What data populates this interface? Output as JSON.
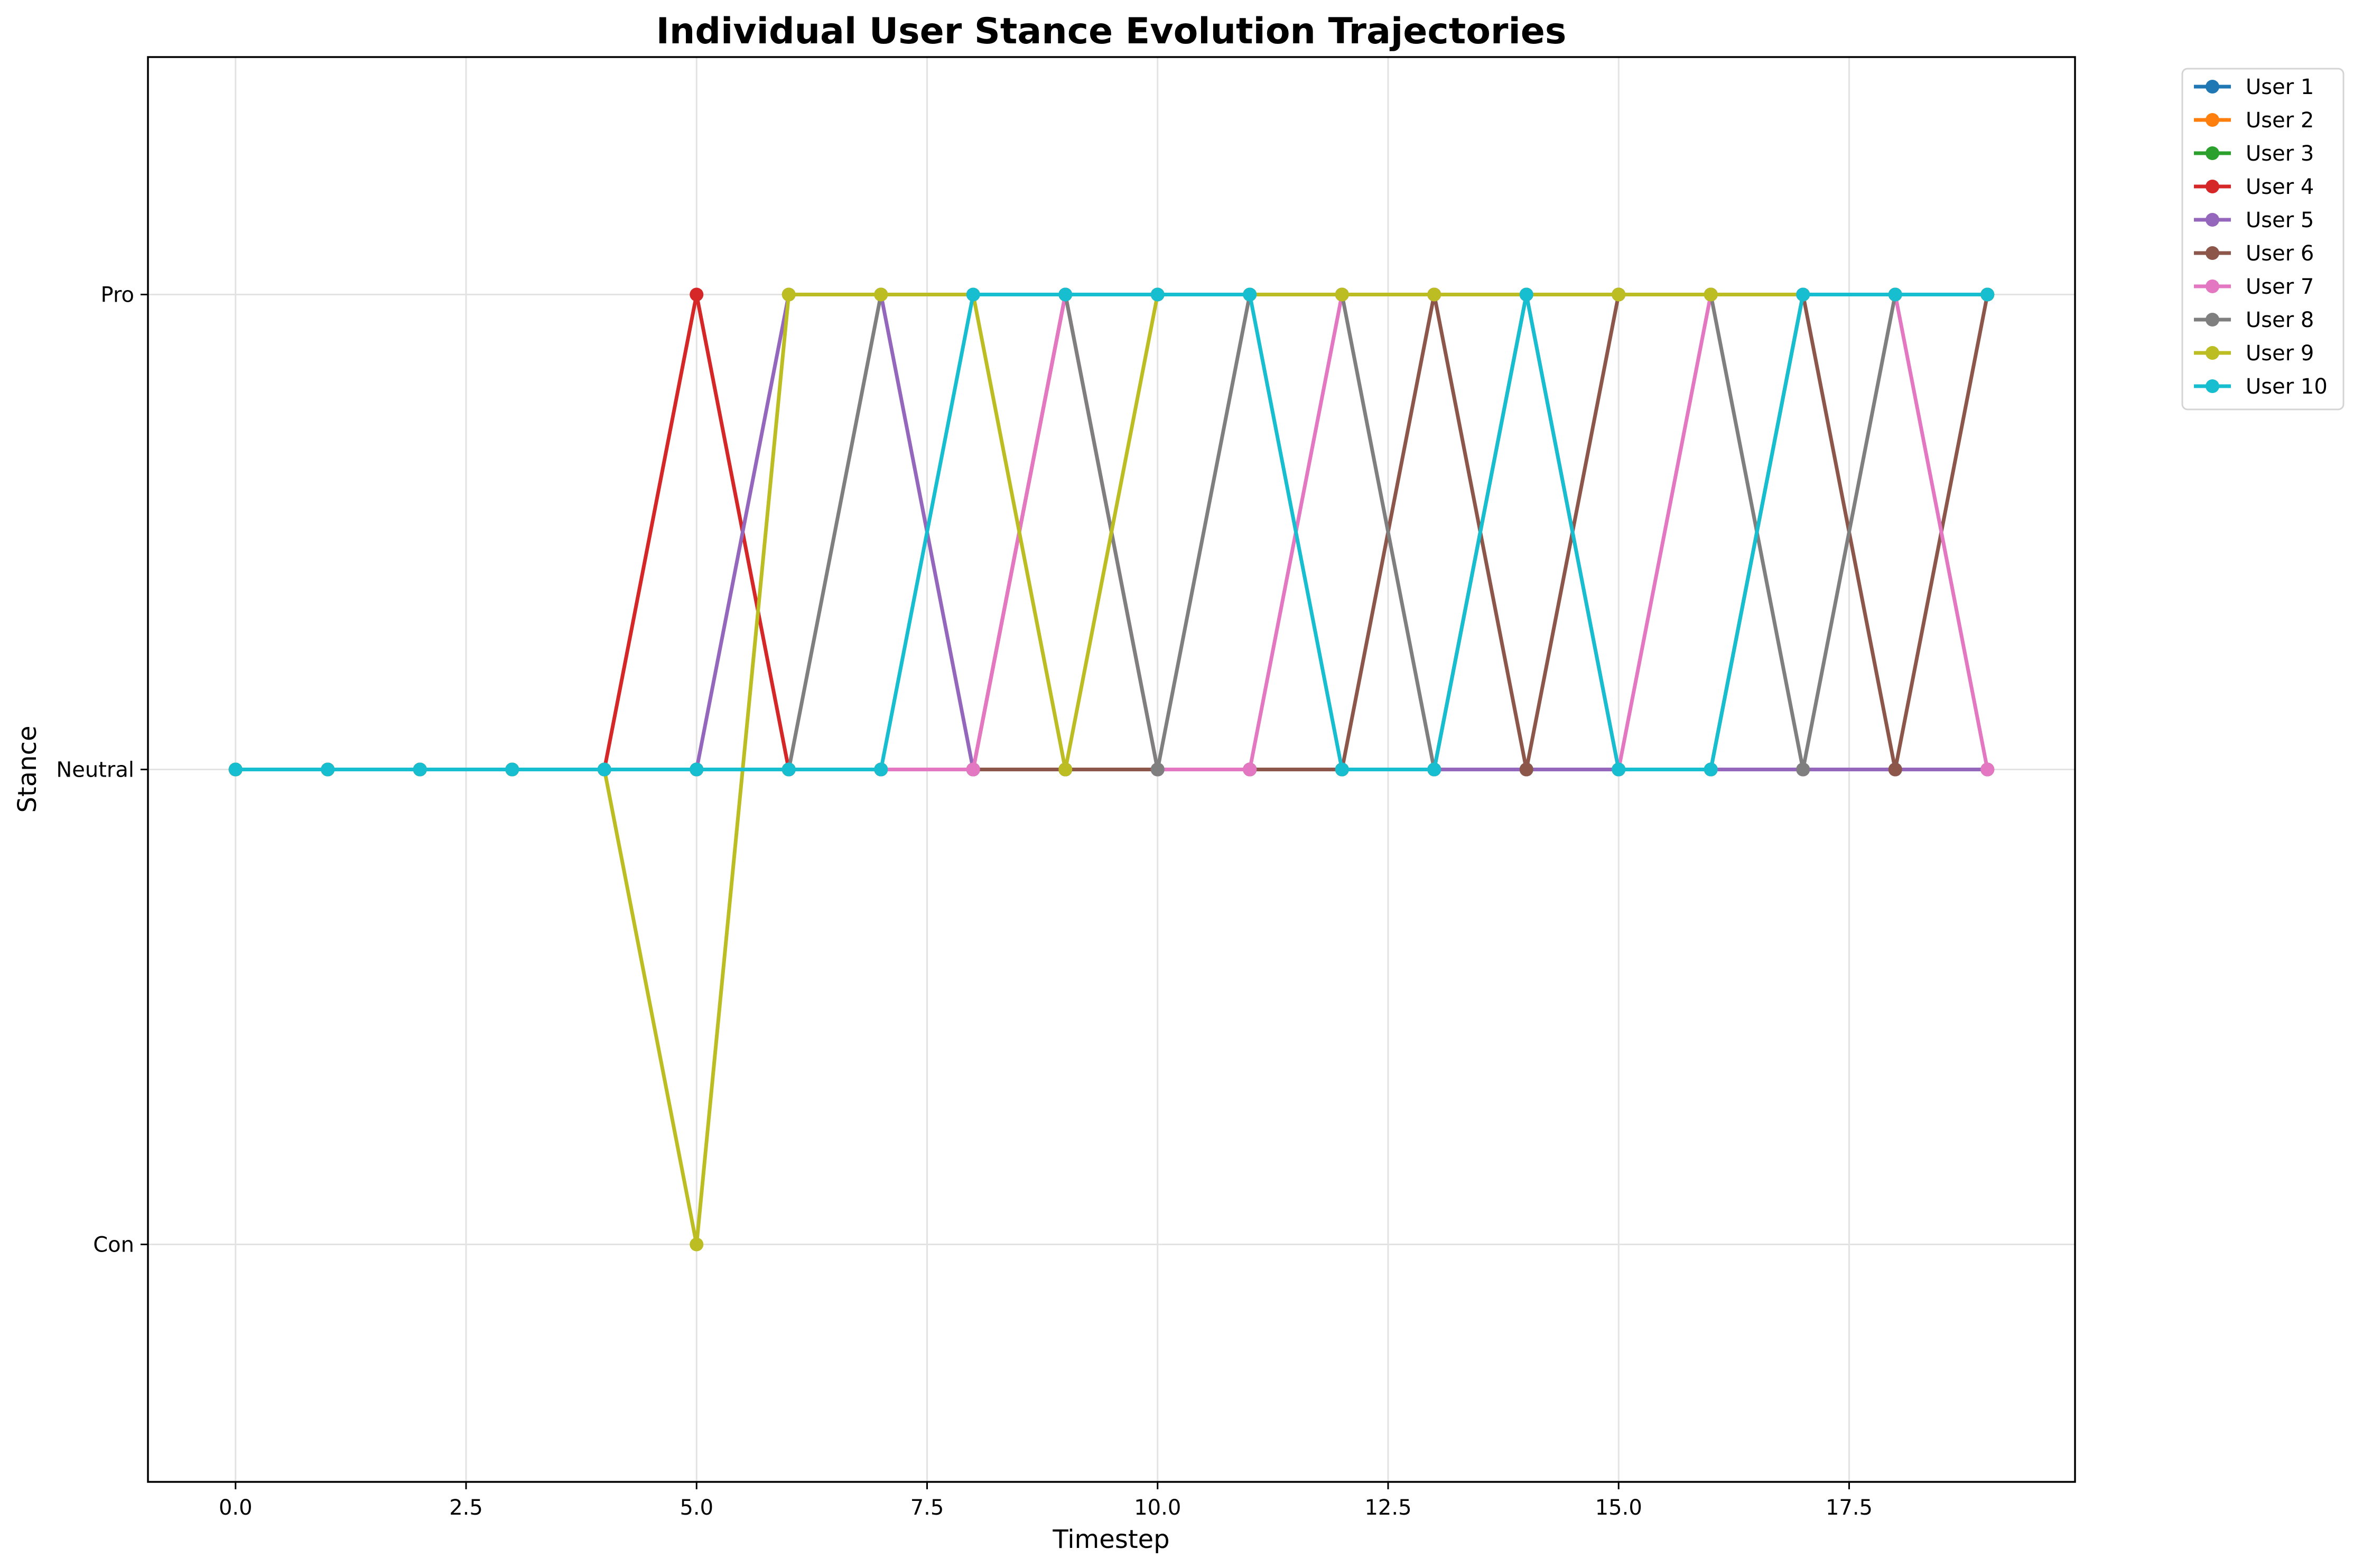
{
  "chart_data": {
    "type": "line",
    "title": "Individual User Stance Evolution Trajectories",
    "xlabel": "Timestep",
    "ylabel": "Stance",
    "xlim": [
      -0.95,
      19.95
    ],
    "ylim": [
      -0.5,
      2.5
    ],
    "xticks": [
      0,
      2.5,
      5,
      7.5,
      10,
      12.5,
      15,
      17.5
    ],
    "xtick_labels": [
      "0.0",
      "2.5",
      "5.0",
      "7.5",
      "10.0",
      "12.5",
      "15.0",
      "17.5"
    ],
    "yticks": [
      0,
      1,
      2
    ],
    "ytick_labels": [
      "Con",
      "Neutral",
      "Pro"
    ],
    "grid": true,
    "legend_position": "outside upper right",
    "x": [
      0,
      1,
      2,
      3,
      4,
      5,
      6,
      7,
      8,
      9,
      10,
      11,
      12,
      13,
      14,
      15,
      16,
      17,
      18,
      19
    ],
    "series": [
      {
        "name": "User 1",
        "color": "#1f77b4",
        "values": [
          1,
          1,
          1,
          1,
          1,
          1,
          1,
          1,
          1,
          1,
          1,
          1,
          1,
          1,
          1,
          1,
          1,
          1,
          1,
          1
        ]
      },
      {
        "name": "User 2",
        "color": "#ff7f0e",
        "values": [
          1,
          1,
          1,
          1,
          1,
          1,
          1,
          1,
          1,
          1,
          1,
          1,
          1,
          1,
          1,
          1,
          1,
          1,
          1,
          1
        ]
      },
      {
        "name": "User 3",
        "color": "#2ca02c",
        "values": [
          1,
          1,
          1,
          1,
          1,
          1,
          1,
          1,
          1,
          1,
          1,
          1,
          1,
          1,
          1,
          1,
          1,
          2,
          2,
          2
        ]
      },
      {
        "name": "User 4",
        "color": "#d62728",
        "values": [
          1,
          1,
          1,
          1,
          1,
          2,
          1,
          1,
          1,
          2,
          2,
          2,
          2,
          2,
          2,
          2,
          2,
          2,
          2,
          2
        ]
      },
      {
        "name": "User 5",
        "color": "#9467bd",
        "values": [
          1,
          1,
          1,
          1,
          1,
          1,
          2,
          2,
          1,
          1,
          1,
          1,
          1,
          1,
          1,
          1,
          1,
          1,
          1,
          1
        ]
      },
      {
        "name": "User 6",
        "color": "#8c564b",
        "values": [
          1,
          1,
          1,
          1,
          1,
          1,
          1,
          1,
          1,
          1,
          1,
          1,
          1,
          2,
          1,
          2,
          2,
          2,
          1,
          2
        ]
      },
      {
        "name": "User 7",
        "color": "#e377c2",
        "values": [
          1,
          1,
          1,
          1,
          1,
          1,
          1,
          1,
          1,
          2,
          1,
          1,
          2,
          2,
          2,
          1,
          2,
          2,
          2,
          1
        ]
      },
      {
        "name": "User 8",
        "color": "#7f7f7f",
        "values": [
          1,
          1,
          1,
          1,
          1,
          1,
          1,
          2,
          2,
          2,
          1,
          2,
          2,
          1,
          2,
          2,
          2,
          1,
          2,
          2
        ]
      },
      {
        "name": "User 9",
        "color": "#bcbd22",
        "values": [
          1,
          1,
          1,
          1,
          1,
          0,
          2,
          2,
          2,
          1,
          2,
          2,
          2,
          2,
          2,
          2,
          2,
          2,
          2,
          2
        ]
      },
      {
        "name": "User 10",
        "color": "#17becf",
        "values": [
          1,
          1,
          1,
          1,
          1,
          1,
          1,
          1,
          2,
          2,
          2,
          2,
          1,
          1,
          2,
          1,
          1,
          2,
          2,
          2
        ]
      }
    ]
  }
}
